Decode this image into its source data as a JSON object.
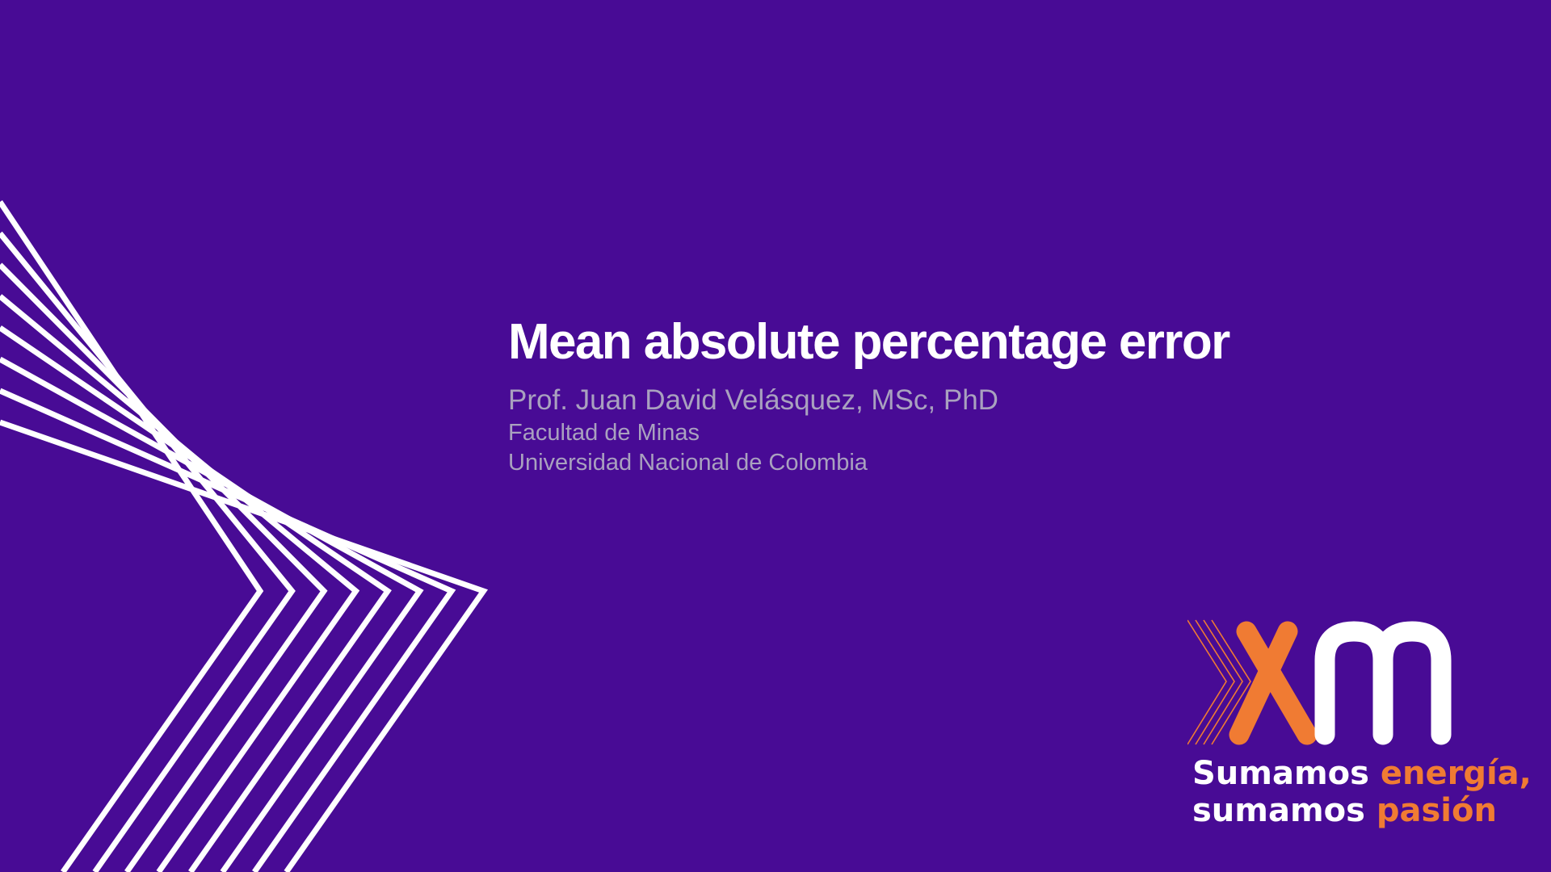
{
  "slide": {
    "title": "Mean absolute percentage error",
    "author": "Prof. Juan David Velásquez, MSc, PhD",
    "affiliation_line1": "Facultad de Minas",
    "affiliation_line2": "Universidad Nacional de Colombia"
  },
  "logo": {
    "tagline_line1_a": "Sumamos ",
    "tagline_line1_b": "energía,",
    "tagline_line2_a": "sumamos ",
    "tagline_line2_b": "pasión"
  },
  "colors": {
    "background": "#480b95",
    "title": "#ffffff",
    "subtitle": "#a9a1bf",
    "chevron_lines": "#ffffff",
    "accent_orange": "#f07b33"
  }
}
